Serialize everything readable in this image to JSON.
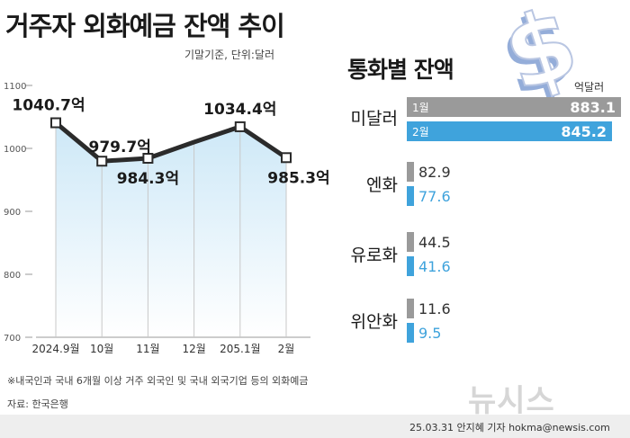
{
  "title": "거주자 외화예금 잔액 추이",
  "basis": "기말기준, 단위:달러",
  "right_title": "통화별 잔액",
  "unit": "억달러",
  "footnote": "※내국인과 국내 6개월 이상 거주 외국인 및 국내 외국기업 등의 외화예금",
  "source": "자료: 한국은행",
  "credit": "25.03.31 안지혜 기자 hokma@newsis.com",
  "watermark": "뉴시스",
  "colors": {
    "line": "#2b2b2b",
    "area_top": "#cde8f7",
    "month1": "#9a9a9a",
    "month2": "#3fa3dc",
    "dollar_icon": "#8fa9d8"
  },
  "icons": {
    "dollar": "dollar-sign-icon"
  },
  "chart_data": [
    {
      "type": "line",
      "x": [
        "2024.9월",
        "10월",
        "11월",
        "12월",
        "205.1월",
        "2월"
      ],
      "series": [
        {
          "values": [
            1040.7,
            979.7,
            984.3,
            1010,
            1034.4,
            985.3
          ]
        }
      ],
      "point_labels": [
        "1040.7억",
        "979.7억",
        "984.3억",
        "",
        "1034.4억",
        "985.3억"
      ],
      "y_ticks": [
        "1100",
        "1000",
        "900",
        "800",
        "700"
      ],
      "ylim": [
        700,
        1100
      ],
      "grid": false
    },
    {
      "type": "bar",
      "orientation": "horizontal",
      "categories": [
        "미달러",
        "엔화",
        "유로화",
        "위안화"
      ],
      "series": [
        {
          "name": "1월",
          "values": [
            883.1,
            82.9,
            44.5,
            11.6
          ]
        },
        {
          "name": "2월",
          "values": [
            845.2,
            77.6,
            41.6,
            9.5
          ]
        }
      ]
    }
  ]
}
